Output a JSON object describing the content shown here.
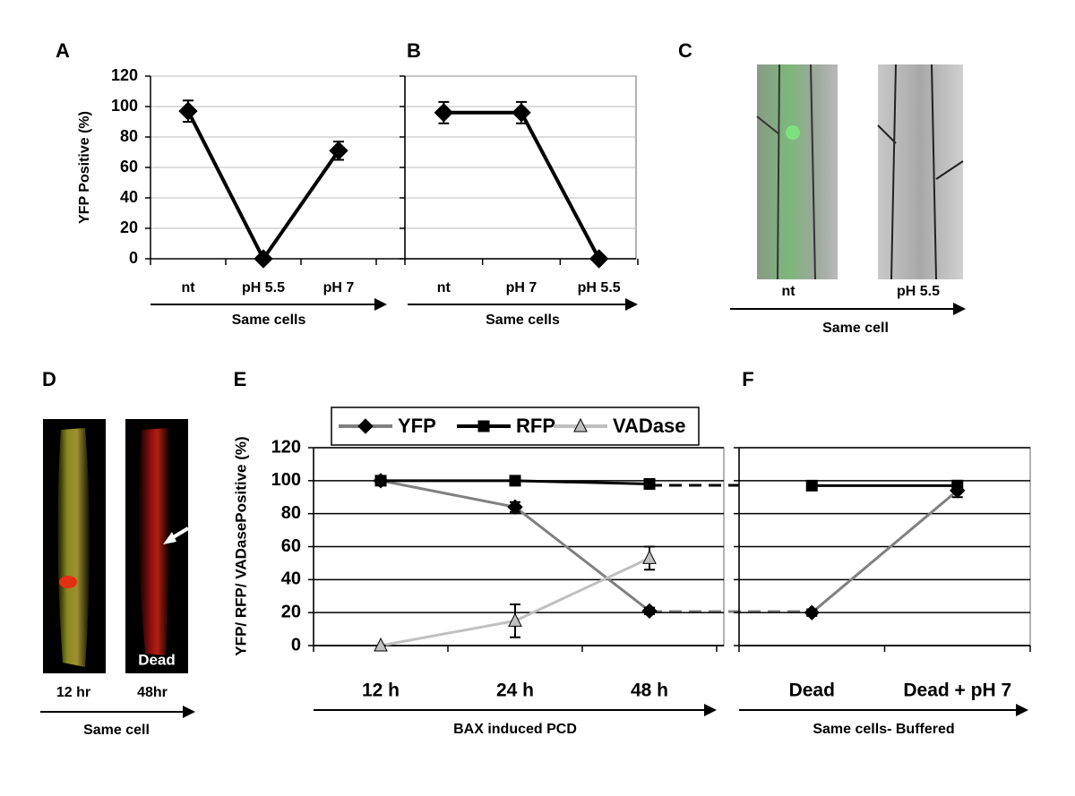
{
  "chart_data": [
    {
      "type": "line",
      "title": "A",
      "ylabel": "YFP Positive (%)",
      "xlabel": "Same cells",
      "categories": [
        "nt",
        "pH 5.5",
        "pH 7"
      ],
      "values": [
        97,
        0,
        71
      ],
      "errors": [
        7,
        0,
        6
      ],
      "color": "#000000",
      "marker": "diamond",
      "ylim": [
        0,
        120
      ],
      "yticks": [
        0,
        20,
        40,
        60,
        80,
        100,
        120
      ],
      "grid": true
    },
    {
      "type": "line",
      "title": "B",
      "xlabel": "Same cells",
      "categories": [
        "nt",
        "pH 7",
        "pH 5.5"
      ],
      "values": [
        96,
        96,
        0
      ],
      "errors": [
        7,
        7,
        0
      ],
      "color": "#000000",
      "marker": "diamond",
      "ylim": [
        0,
        120
      ],
      "yticks": [
        0,
        20,
        40,
        60,
        80,
        100,
        120
      ],
      "grid": true
    },
    {
      "type": "line",
      "title": "E",
      "ylabel": "YFP/ RFP/ VADasePositive (%)",
      "xlabel": "BAX induced PCD",
      "categories": [
        "12 h",
        "24 h",
        "48 h"
      ],
      "series": [
        {
          "name": "YFP",
          "color": "#808080",
          "marker": "diamond",
          "values": [
            100,
            84,
            21
          ],
          "errors": [
            2,
            3,
            2
          ]
        },
        {
          "name": "RFP",
          "color": "#000000",
          "marker": "square",
          "values": [
            100,
            100,
            98
          ],
          "errors": [
            2,
            2,
            2
          ]
        },
        {
          "name": "VADase",
          "color": "#c0c0c0",
          "marker": "triangle",
          "values": [
            0,
            15,
            53
          ],
          "errors": [
            0,
            10,
            7
          ]
        }
      ],
      "ylim": [
        0,
        120
      ],
      "yticks": [
        0,
        20,
        40,
        60,
        80,
        100,
        120
      ],
      "grid": true,
      "legend": "top"
    },
    {
      "type": "line",
      "title": "F",
      "xlabel": "Same cells- Buffered",
      "categories": [
        "Dead",
        "Dead + pH 7"
      ],
      "series": [
        {
          "color": "#000000",
          "marker": "square",
          "values": [
            97,
            97
          ],
          "errors": [
            2,
            3
          ]
        },
        {
          "color": "#808080",
          "marker": "diamond",
          "values": [
            20,
            94
          ],
          "errors": [
            2,
            4
          ]
        }
      ],
      "ylim": [
        0,
        120
      ],
      "yticks": [
        0,
        20,
        40,
        60,
        80,
        100,
        120
      ],
      "grid": true
    }
  ],
  "image_panels": [
    {
      "title": "C",
      "labels": [
        "nt",
        "pH 5.5"
      ],
      "caption": "Same cell"
    },
    {
      "title": "D",
      "labels": [
        "12 hr",
        "48hr"
      ],
      "overlay": "Dead",
      "caption": "Same cell"
    }
  ]
}
